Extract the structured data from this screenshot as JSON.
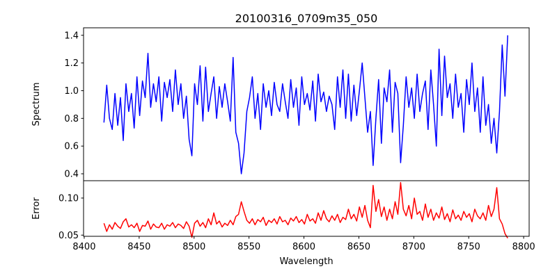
{
  "chart_data": [
    {
      "type": "line",
      "title": "20100316_0709m35_050",
      "xlabel": "",
      "ylabel": "Spectrum",
      "color": "#0000ff",
      "xlim": [
        8399.4,
        8805
      ],
      "ylim": [
        0.35,
        1.454
      ],
      "yticks": [
        "0.4",
        "0.6",
        "0.8",
        "1.0",
        "1.2",
        "1.4"
      ],
      "x_start": 8418,
      "x_step": 2.5,
      "values": [
        0.77,
        1.04,
        0.8,
        0.72,
        0.98,
        0.75,
        0.95,
        0.64,
        1.05,
        0.85,
        0.98,
        0.73,
        1.1,
        0.82,
        1.07,
        0.95,
        1.27,
        0.88,
        1.05,
        0.92,
        1.1,
        0.78,
        1.06,
        0.95,
        1.08,
        0.85,
        1.15,
        0.9,
        1.05,
        0.8,
        0.96,
        0.65,
        0.53,
        1.05,
        0.9,
        1.18,
        0.78,
        1.17,
        0.85,
        0.98,
        1.1,
        0.8,
        1.03,
        0.88,
        1.05,
        0.92,
        0.78,
        1.24,
        0.7,
        0.62,
        0.4,
        0.55,
        0.85,
        0.95,
        1.1,
        0.8,
        0.98,
        0.72,
        1.05,
        0.88,
        1.0,
        0.82,
        1.06,
        0.9,
        0.85,
        1.05,
        0.92,
        0.8,
        1.08,
        0.88,
        1.02,
        0.75,
        1.1,
        0.9,
        0.98,
        0.86,
        1.07,
        0.78,
        1.12,
        0.92,
        0.99,
        0.85,
        0.96,
        0.9,
        0.72,
        1.1,
        0.88,
        1.15,
        0.8,
        1.12,
        0.78,
        1.04,
        0.82,
        1.0,
        1.2,
        0.95,
        0.7,
        0.85,
        0.46,
        0.8,
        1.08,
        0.62,
        1.02,
        0.92,
        1.15,
        0.7,
        1.06,
        0.98,
        0.48,
        0.75,
        1.1,
        0.88,
        1.02,
        0.8,
        1.12,
        0.85,
        0.98,
        1.07,
        0.72,
        1.15,
        0.9,
        0.6,
        1.3,
        0.82,
        1.25,
        0.95,
        1.05,
        0.8,
        1.12,
        0.88,
        0.98,
        0.7,
        1.08,
        0.9,
        1.2,
        0.85,
        1.02,
        0.7,
        1.1,
        0.75,
        0.9,
        0.62,
        0.8,
        0.55,
        0.85,
        1.33,
        0.96,
        1.4
      ]
    },
    {
      "type": "line",
      "title": "",
      "xlabel": "Wavelength",
      "ylabel": "Error",
      "color": "#ff0000",
      "xlim": [
        8399.4,
        8805
      ],
      "ylim": [
        0.0484,
        0.1234
      ],
      "xticks": [
        "8400",
        "8450",
        "8500",
        "8550",
        "8600",
        "8650",
        "8700",
        "8750",
        "8800"
      ],
      "yticks": [
        "0.05",
        "0.10"
      ],
      "x_start": 8418,
      "x_step": 2.5,
      "values": [
        0.066,
        0.055,
        0.064,
        0.058,
        0.067,
        0.062,
        0.059,
        0.068,
        0.072,
        0.061,
        0.064,
        0.06,
        0.066,
        0.055,
        0.063,
        0.062,
        0.069,
        0.058,
        0.065,
        0.061,
        0.06,
        0.066,
        0.058,
        0.064,
        0.062,
        0.067,
        0.06,
        0.065,
        0.063,
        0.059,
        0.068,
        0.062,
        0.047,
        0.066,
        0.07,
        0.062,
        0.067,
        0.06,
        0.072,
        0.064,
        0.08,
        0.065,
        0.069,
        0.061,
        0.066,
        0.063,
        0.07,
        0.064,
        0.075,
        0.078,
        0.095,
        0.082,
        0.07,
        0.066,
        0.072,
        0.064,
        0.071,
        0.068,
        0.074,
        0.063,
        0.07,
        0.067,
        0.072,
        0.065,
        0.075,
        0.068,
        0.07,
        0.064,
        0.073,
        0.069,
        0.075,
        0.067,
        0.071,
        0.065,
        0.078,
        0.069,
        0.072,
        0.066,
        0.08,
        0.07,
        0.083,
        0.072,
        0.068,
        0.076,
        0.07,
        0.078,
        0.067,
        0.074,
        0.071,
        0.085,
        0.072,
        0.078,
        0.069,
        0.088,
        0.074,
        0.09,
        0.07,
        0.06,
        0.117,
        0.082,
        0.098,
        0.075,
        0.088,
        0.07,
        0.085,
        0.072,
        0.095,
        0.078,
        0.121,
        0.085,
        0.076,
        0.09,
        0.072,
        0.1,
        0.078,
        0.082,
        0.07,
        0.092,
        0.074,
        0.085,
        0.07,
        0.08,
        0.073,
        0.088,
        0.071,
        0.079,
        0.068,
        0.084,
        0.072,
        0.077,
        0.07,
        0.082,
        0.074,
        0.079,
        0.068,
        0.085,
        0.076,
        0.072,
        0.08,
        0.07,
        0.09,
        0.075,
        0.085,
        0.114,
        0.072,
        0.065,
        0.052,
        0.046
      ]
    }
  ]
}
